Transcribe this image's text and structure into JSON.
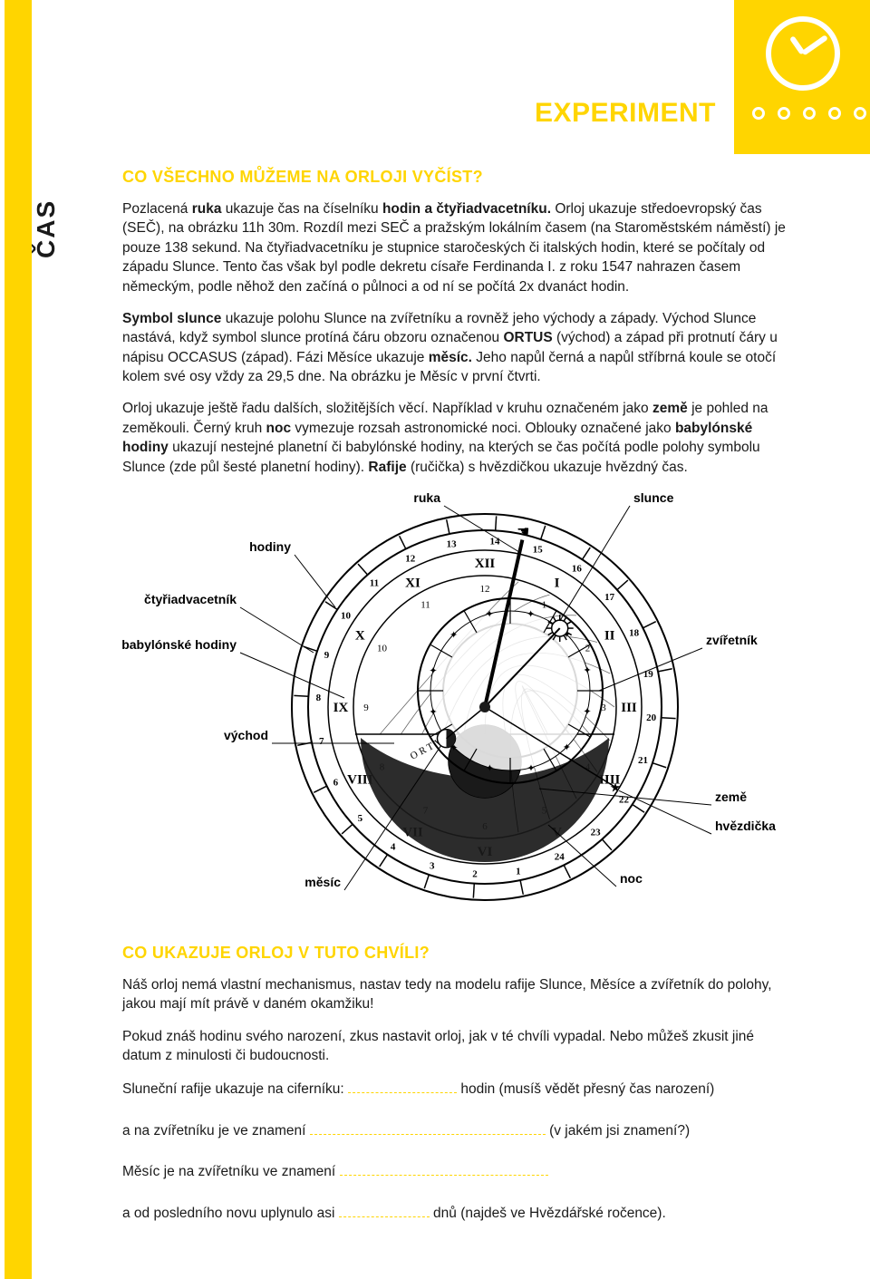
{
  "side_label": "ČAS",
  "section_title": "EXPERIMENT",
  "heading1": "CO VŠECHNO MŮŽEME NA ORLOJI VYČÍST?",
  "para1_html": "Pozlacená <b>ruka</b> ukazuje čas na číselníku <b>hodin a čtyřiadvacetníku.</b> Orloj ukazuje středoevropský čas (SEČ), na obrázku 11h 30m. Rozdíl mezi SEČ a pražským lokálním časem (na Staroměstském náměstí) je pouze 138 sekund. Na čtyřiadvacetníku je stupnice staročeských či italských hodin, které se počítaly od západu Slunce. Tento čas však byl podle dekretu císaře Ferdinanda I. z roku 1547 nahrazen časem německým, podle něhož den začíná o půlnoci a od ní se počítá 2x dvanáct hodin.",
  "para2_html": "<b>Symbol slunce</b> ukazuje polohu Slunce na zvířetníku a rovněž jeho východy a západy. Východ Slunce nastává, když symbol slunce protíná čáru obzoru označenou <b>ORTUS</b> (východ) a západ při protnutí čáry u nápisu OCCASUS (západ). Fázi Měsíce ukazuje <b>měsíc.</b> Jeho napůl černá a napůl stříbrná koule se otočí kolem své osy vždy za 29,5 dne. Na obrázku je Měsíc v první čtvrti.",
  "para3_html": "Orloj ukazuje ještě řadu dalších, složitějších věcí. Například v kruhu označeném jako <b>země</b> je pohled na zeměkouli. Černý kruh <b>noc</b> vymezuje rozsah astronomické noci. Oblouky označené jako <b>babylónské hodiny</b> ukazují nestejné planetní či babylónské hodiny, na kterých se čas počítá podle polohy symbolu Slunce (zde půl šesté planetní hodiny). <b>Rafije</b> (ručička) s hvězdičkou ukazuje hvězdný čas.",
  "diagram": {
    "labels": {
      "ruka": "ruka",
      "slunce": "slunce",
      "hodiny": "hodiny",
      "ctyriadvacetnik": "čtyřiadvacetník",
      "zviretnik": "zvířetník",
      "babylonske": "babylónské hodiny",
      "vychod": "východ",
      "zeme": "země",
      "hvezdicka": "hvězdička",
      "mesic": "měsíc",
      "noc": "noc"
    },
    "numerals_outer": [
      "14",
      "15",
      "16",
      "17",
      "18",
      "19",
      "20",
      "21",
      "22",
      "23",
      "24",
      "1",
      "2",
      "3",
      "4",
      "5",
      "6",
      "7",
      "8",
      "9",
      "10",
      "11",
      "12",
      "13"
    ],
    "numerals_inner": [
      "XII",
      "I",
      "II",
      "III",
      "IIII",
      "V",
      "VI",
      "VII",
      "VIII",
      "IX",
      "X",
      "XI"
    ],
    "ortus": "ORTVS",
    "label_font": 14,
    "colors": {
      "line": "#000000",
      "fill_light": "#ffffff",
      "fill_dark": "#1a1a1a",
      "grey": "#555555"
    }
  },
  "heading2": "CO UKAZUJE ORLOJ V TUTO CHVÍLI?",
  "para4": "Náš orloj nemá vlastní mechanismus, nastav tedy na modelu rafije Slunce, Měsíce a zvířetník do polohy, jakou mají mít právě v daném okamžiku!",
  "para5": "Pokud znáš hodinu svého narození, zkus nastavit orloj, jak v té chvíli vypadal. Nebo můžeš zkusit jiné datum z minulosti či budoucnosti.",
  "fill1_pre": "Sluneční rafije ukazuje na ciferníku:",
  "fill1_post": "hodin (musíš vědět přesný čas narození)",
  "fill2_pre": "a na zvířetníku je ve znamení",
  "fill2_post": "(v jakém jsi znamení?)",
  "fill3_pre": "Měsíc je na zvířetníku ve znamení",
  "fill4_pre": "a od posledního novu uplynulo asi",
  "fill4_post": "dnů (najdeš ve Hvězdářské ročence).",
  "colors": {
    "accent": "#ffd500",
    "text": "#1a1a1a",
    "bg": "#ffffff"
  }
}
